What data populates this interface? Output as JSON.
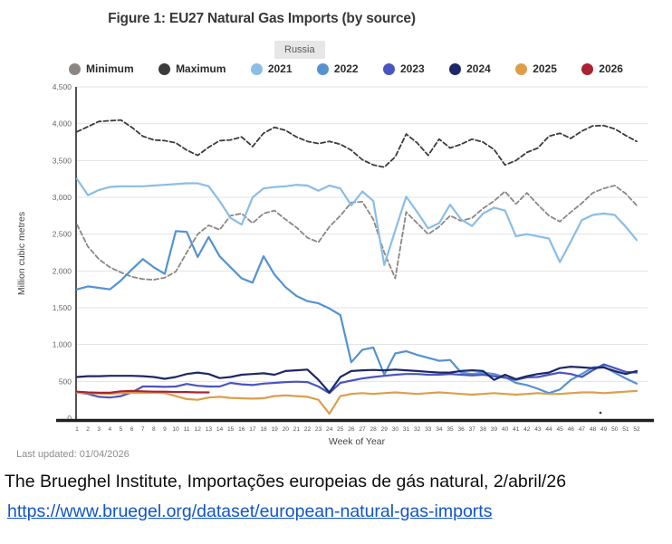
{
  "footer": {
    "last_updated": "Last updated: 01/04/2026"
  },
  "caption": {
    "text": "The Brueghel Institute, Importações europeias de gás natural, 2/abril/26",
    "link": "https://www.bruegel.org/dataset/european-natural-gas-imports"
  },
  "chart_data": {
    "type": "line",
    "title": "Figure 1: EU27 Natural Gas Imports (by source)",
    "source_tab": "Russia",
    "xlabel": "Week of Year",
    "ylabel": "Million cubic metres",
    "grid": true,
    "legend_position": "top",
    "x": [
      1,
      2,
      3,
      4,
      5,
      6,
      7,
      8,
      9,
      10,
      11,
      12,
      13,
      14,
      15,
      16,
      17,
      18,
      19,
      20,
      21,
      22,
      23,
      24,
      25,
      26,
      27,
      28,
      29,
      30,
      31,
      32,
      33,
      34,
      35,
      36,
      37,
      38,
      39,
      40,
      41,
      42,
      43,
      44,
      45,
      46,
      47,
      48,
      49,
      50,
      51,
      52
    ],
    "ylim": [
      0,
      4500
    ],
    "yticks": {
      "values": [
        0,
        500,
        1000,
        1500,
        2000,
        2500,
        3000,
        3500,
        4000,
        4500
      ],
      "labels": [
        "0",
        "500",
        "1,000",
        "1,500",
        "2,000",
        "2,500",
        "3,000",
        "3,500",
        "4,000",
        "4,500"
      ]
    },
    "series": [
      {
        "name": "Minimum",
        "color": "#8d8784",
        "dash": true,
        "values": [
          2630,
          2330,
          2160,
          2050,
          1980,
          1920,
          1890,
          1880,
          1910,
          1990,
          2250,
          2500,
          2620,
          2560,
          2750,
          2780,
          2650,
          2780,
          2820,
          2700,
          2590,
          2450,
          2390,
          2600,
          2750,
          2930,
          2940,
          2700,
          2250,
          1900,
          2800,
          2650,
          2500,
          2600,
          2750,
          2680,
          2720,
          2850,
          2950,
          3080,
          2910,
          3060,
          2900,
          2750,
          2670,
          2800,
          2920,
          3060,
          3120,
          3160,
          3050,
          2890
        ]
      },
      {
        "name": "Maximum",
        "color": "#3b3b3b",
        "dash": true,
        "values": [
          3890,
          3960,
          4030,
          4040,
          4050,
          3950,
          3830,
          3780,
          3770,
          3740,
          3640,
          3570,
          3680,
          3770,
          3780,
          3820,
          3690,
          3870,
          3950,
          3910,
          3820,
          3760,
          3730,
          3760,
          3720,
          3640,
          3510,
          3440,
          3410,
          3550,
          3860,
          3740,
          3570,
          3790,
          3670,
          3720,
          3790,
          3750,
          3650,
          3440,
          3500,
          3610,
          3670,
          3830,
          3870,
          3800,
          3900,
          3970,
          3975,
          3930,
          3840,
          3760
        ]
      },
      {
        "name": "2021",
        "color": "#8bbde5",
        "dash": false,
        "values": [
          3250,
          3030,
          3100,
          3140,
          3150,
          3150,
          3150,
          3160,
          3170,
          3180,
          3190,
          3190,
          3150,
          2950,
          2720,
          2630,
          3000,
          3120,
          3140,
          3150,
          3170,
          3160,
          3090,
          3160,
          3120,
          2890,
          3080,
          2950,
          2080,
          2550,
          3010,
          2800,
          2580,
          2650,
          2900,
          2700,
          2610,
          2780,
          2860,
          2820,
          2470,
          2500,
          2470,
          2440,
          2120,
          2400,
          2690,
          2760,
          2780,
          2760,
          2600,
          2420
        ]
      },
      {
        "name": "2022",
        "color": "#5492d2",
        "dash": false,
        "values": [
          1750,
          1790,
          1770,
          1750,
          1870,
          2020,
          2160,
          2050,
          1960,
          2540,
          2530,
          2190,
          2460,
          2200,
          2050,
          1900,
          1840,
          2200,
          1950,
          1780,
          1660,
          1590,
          1560,
          1490,
          1400,
          760,
          930,
          960,
          590,
          880,
          910,
          860,
          820,
          780,
          790,
          620,
          600,
          620,
          600,
          560,
          480,
          450,
          400,
          340,
          390,
          520,
          600,
          690,
          700,
          620,
          540,
          470
        ]
      },
      {
        "name": "2023",
        "color": "#4a55c0",
        "dash": false,
        "values": [
          350,
          330,
          290,
          280,
          300,
          350,
          430,
          430,
          425,
          430,
          465,
          440,
          430,
          430,
          480,
          460,
          450,
          470,
          480,
          490,
          495,
          490,
          430,
          340,
          480,
          510,
          540,
          560,
          575,
          590,
          600,
          600,
          590,
          590,
          600,
          590,
          580,
          590,
          570,
          550,
          520,
          555,
          560,
          590,
          620,
          600,
          560,
          650,
          730,
          680,
          630,
          620
        ]
      },
      {
        "name": "2024",
        "color": "#1d2866",
        "dash": false,
        "values": [
          560,
          570,
          570,
          575,
          575,
          575,
          570,
          560,
          535,
          560,
          600,
          620,
          600,
          545,
          560,
          590,
          600,
          610,
          590,
          640,
          650,
          660,
          520,
          350,
          560,
          640,
          650,
          655,
          650,
          660,
          650,
          640,
          630,
          620,
          620,
          640,
          650,
          640,
          520,
          590,
          530,
          570,
          600,
          620,
          680,
          700,
          690,
          680,
          690,
          640,
          600,
          640
        ]
      },
      {
        "name": "2025",
        "color": "#dd9e4a",
        "dash": false,
        "values": [
          345,
          340,
          335,
          330,
          340,
          345,
          345,
          345,
          340,
          300,
          260,
          250,
          280,
          290,
          275,
          270,
          265,
          270,
          300,
          310,
          300,
          290,
          250,
          60,
          300,
          330,
          340,
          330,
          340,
          350,
          340,
          330,
          340,
          350,
          340,
          330,
          320,
          330,
          340,
          330,
          320,
          330,
          340,
          330,
          330,
          340,
          350,
          350,
          340,
          350,
          360,
          370
        ]
      },
      {
        "name": "2026",
        "color": "#aa2333",
        "dash": false,
        "values": [
          360,
          350,
          345,
          345,
          365,
          370,
          365,
          360,
          360,
          355,
          355,
          350,
          350,
          null,
          null,
          null,
          null,
          null,
          null,
          null,
          null,
          null,
          null,
          null,
          null,
          null,
          null,
          null,
          null,
          null,
          null,
          null,
          null,
          null,
          null,
          null,
          null,
          null,
          null,
          null,
          null,
          null,
          null,
          null,
          null,
          null,
          null,
          null,
          null,
          null,
          null,
          null
        ]
      }
    ]
  }
}
